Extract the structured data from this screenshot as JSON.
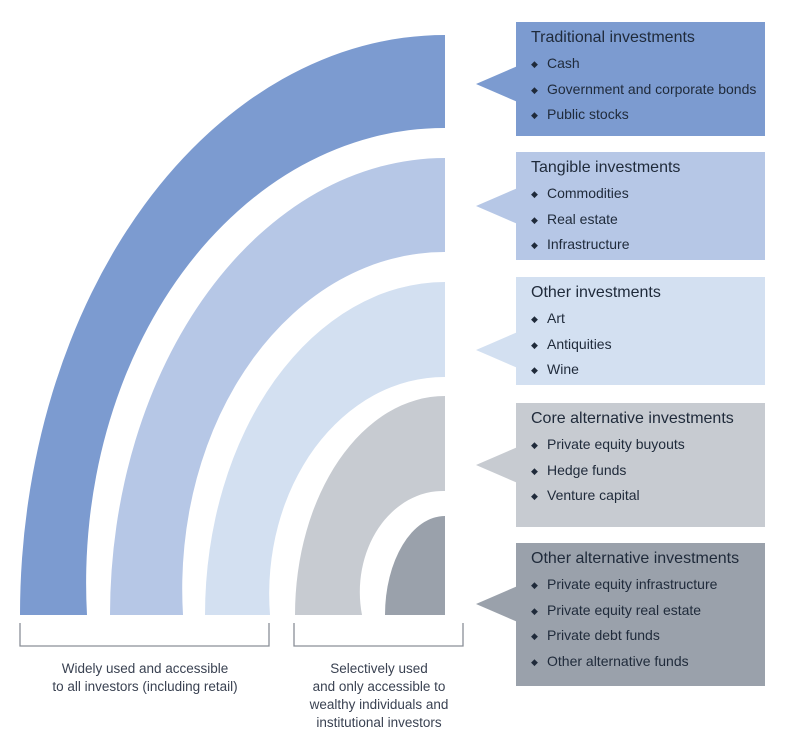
{
  "colors": {
    "traditional": "#7c9bd0",
    "tangible": "#b6c7e6",
    "other": "#d3e0f1",
    "core_alternative": "#c7cbd1",
    "other_alternative": "#9aa1ab",
    "bracket": "#8a8f97"
  },
  "categories": [
    {
      "title": "Traditional investments",
      "items": [
        "Cash",
        "Government and corporate bonds",
        "Public stocks"
      ]
    },
    {
      "title": "Tangible investments",
      "items": [
        "Commodities",
        "Real estate",
        "Infrastructure"
      ]
    },
    {
      "title": "Other investments",
      "items": [
        "Art",
        "Antiquities",
        "Wine"
      ]
    },
    {
      "title": "Core alternative investments",
      "items": [
        "Private equity buyouts",
        "Hedge funds",
        "Venture capital"
      ]
    },
    {
      "title": "Other alternative investments",
      "items": [
        "Private equity infrastructure",
        "Private equity real estate",
        "Private debt funds",
        "Other alternative funds"
      ]
    }
  ],
  "bullet_glyph": "◆",
  "captions": {
    "widely_used": "Widely used and accessible\nto all investors (including retail)",
    "selectively_used": "Selectively used\nand only accessible to\nwealthy individuals and\ninstitutional investors"
  }
}
